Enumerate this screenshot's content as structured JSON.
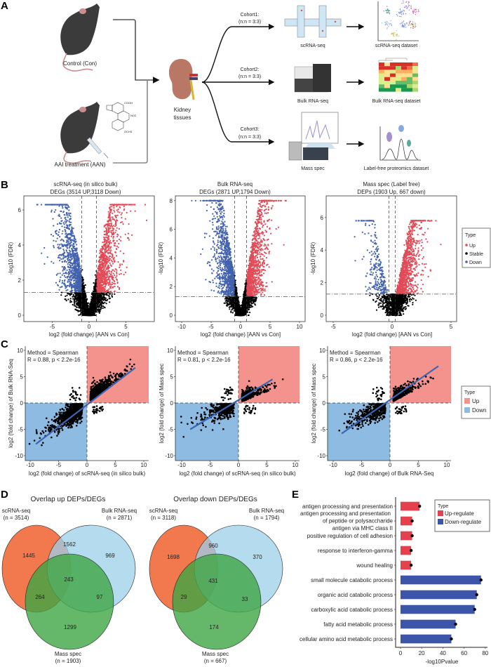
{
  "panel_labels": {
    "a": "A",
    "b": "B",
    "c": "C",
    "d": "D",
    "e": "E"
  },
  "panel_a": {
    "control_label": "Control (Con)",
    "aan_label": "AAI treatment (AAN)",
    "kidney_label_1": "Kidney",
    "kidney_label_2": "tissues",
    "cohorts": [
      {
        "name": "Cohort1:",
        "n": "(n:n = 3:3)",
        "method": "scRNA-seq",
        "dataset": "scRNA-seq dataset"
      },
      {
        "name": "Cohort2:",
        "n": "(n:n = 3:3)",
        "method": "Bulk RNA-seq",
        "dataset": "Bulk RNA-seq  dataset"
      },
      {
        "name": "Cohort3:",
        "n": "(n:n = 3:3)",
        "method": "Mass spec",
        "dataset": "Label-free proteomics dataset"
      }
    ],
    "chem_labels": [
      "COOH",
      "NO2",
      "OCH3"
    ]
  },
  "colors": {
    "up": "#e14b57",
    "down": "#4262ae",
    "stable": "#000000",
    "up_region": "#f4928d",
    "down_region": "#8dbbe2",
    "fit_line": "#3c66b4",
    "venn_scrna": "#ef6a3a",
    "venn_bulk": "#9ccfe9",
    "venn_mass": "#3ea644",
    "bar_up": "#e5404d",
    "bar_down": "#3d55a8"
  },
  "legend_b": {
    "title": "Type",
    "items": [
      "Up",
      "Stable",
      "Down"
    ]
  },
  "legend_c": {
    "title": "Type",
    "items": [
      "Up",
      "Down"
    ]
  },
  "chart_data": [
    {
      "type": "scatter",
      "title_1": "scRNA-seq (in silico bulk)",
      "title_2": "DEGs (3514 UP,3118 Down)",
      "xlabel": "log2 (fold change) [AAN vs Con]",
      "ylabel": "-log10 (FDR)",
      "xticks": [
        "-5",
        "0",
        "5"
      ],
      "yticks": [
        "0",
        "2",
        "4",
        "6"
      ],
      "xlim": [
        -9.3,
        8.8
      ],
      "ylim": [
        -0.4,
        6.8
      ],
      "fdr_threshold": 1.3,
      "fc_thresholds": [
        -1,
        1
      ],
      "up_count": 3514,
      "down_count": 3118
    },
    {
      "type": "scatter",
      "title_1": "Bulk RNA-seq",
      "title_2": "DEGs (2871 UP,1794 Down)",
      "xlabel": "log2 (fold change) [AAN vs Con]",
      "ylabel": "-log10 (FDR)",
      "xticks": [
        "-10",
        "-5",
        "0",
        "5",
        "10"
      ],
      "yticks": [
        "0",
        "2",
        "4",
        "6",
        "8"
      ],
      "xlim": [
        -11,
        11
      ],
      "ylim": [
        -0.4,
        8.4
      ],
      "fdr_threshold": 1.3,
      "fc_thresholds": [
        -1,
        1
      ],
      "up_count": 2871,
      "down_count": 1794
    },
    {
      "type": "scatter",
      "title_1": "Mass spec (Label free)",
      "title_2": "DEPs (1903 Up, 667 down)",
      "xlabel": "log2 (fold change) [AAN vs Con]",
      "ylabel": "-log10 (FDR)",
      "xticks": [
        "-5",
        "0",
        "5"
      ],
      "yticks": [
        "0",
        "2",
        "4",
        "6"
      ],
      "xlim": [
        -5.5,
        5.5
      ],
      "ylim": [
        -0.4,
        7.4
      ],
      "fdr_threshold": 1.3,
      "fc_thresholds": [
        -0.26,
        0.26
      ],
      "up_count": 1903,
      "down_count": 667
    },
    {
      "type": "scatter",
      "method": "Method = Spearman",
      "stat": "R = 0.88, p < 2.2e-16",
      "xlabel": "log2 (fold change) of scRNA-seq (in silico bulk)",
      "ylabel": "log2 (fold change) of Bulk RNA-Seq",
      "xticks": [
        "-10",
        "-5",
        "0",
        "5",
        "10"
      ],
      "yticks": [
        "-10",
        "-5",
        "0",
        "5",
        "10"
      ],
      "xlim": [
        -11,
        10.8
      ],
      "ylim": [
        -11,
        10.8
      ],
      "R": 0.88,
      "fit": [
        [
          -9,
          -7.8
        ],
        [
          8.5,
          6.7
        ]
      ]
    },
    {
      "type": "scatter",
      "method": "Method = Spearman",
      "stat": "R = 0.81, p < 2.2e-16",
      "xlabel": "log2 (fold change) of scRNA-seq (in silico bulk)",
      "ylabel": "log2 (fold change) of Mass spec",
      "xticks": [
        "-10",
        "-5",
        "0",
        "5",
        "10"
      ],
      "yticks": [
        "-10",
        "-5",
        "0",
        "5",
        "10"
      ],
      "xlim": [
        -11,
        10.8
      ],
      "ylim": [
        -11,
        10.8
      ],
      "R": 0.81,
      "fit": [
        [
          -8.5,
          -5
        ],
        [
          6,
          4.5
        ]
      ]
    },
    {
      "type": "scatter",
      "method": "Method = Spearman",
      "stat": "R = 0.86, p < 2.2e-16",
      "xlabel": "log2 (fold change) of Bulk RNA-Seq",
      "ylabel": "log2 (fold change) of Mass spec",
      "xticks": [
        "-10",
        "-5",
        "0",
        "5",
        "10"
      ],
      "yticks": [
        "-10",
        "-5",
        "0",
        "5",
        "10"
      ],
      "xlim": [
        -11,
        10.8
      ],
      "ylim": [
        -11,
        10.8
      ],
      "R": 0.86,
      "fit": [
        [
          -8.5,
          -5.8
        ],
        [
          8.5,
          7
        ]
      ]
    },
    {
      "type": "venn",
      "title": "Overlap up DEPs/DEGs",
      "sets": [
        {
          "name": "scRNA-seq",
          "n": "(n = 3514)"
        },
        {
          "name": "Bulk RNA-seq",
          "n": "(n = 2871)"
        },
        {
          "name": "Mass spec",
          "n": "(n = 1903)"
        }
      ],
      "regions": {
        "scrna_only": "1445",
        "scrna_bulk": "1562",
        "bulk_only": "969",
        "all": "243",
        "scrna_mass": "264",
        "bulk_mass": "97",
        "mass_only": "1299"
      }
    },
    {
      "type": "venn",
      "title": "Overlap down DEPs/DEGs",
      "sets": [
        {
          "name": "scRNA-seq",
          "n": "(n = 3118)"
        },
        {
          "name": "Bulk RNA-seq",
          "n": "(n = 1794)"
        },
        {
          "name": "Mass spec",
          "n": "(n = 667)"
        }
      ],
      "regions": {
        "scrna_only": "1698",
        "scrna_bulk": "960",
        "bulk_only": "370",
        "all": "431",
        "scrna_mass": "29",
        "bulk_mass": "33",
        "mass_only": "174"
      }
    },
    {
      "type": "bar",
      "orientation": "horizontal",
      "xlabel": "-log10Pvalue",
      "xlim": [
        0,
        80
      ],
      "xticks": [
        "0",
        "20",
        "40",
        "60",
        "80"
      ],
      "legend": {
        "title": "Type",
        "items": [
          "Up-regulate",
          "Down-regulate"
        ]
      },
      "categories": [
        "antigen processing and presentation",
        "antigen processing and presentation\nof peptide or polysaccharide\nantigen via MHC class II",
        "positive regulation of cell adhesion",
        "response to interferon-gamma",
        "wound healing",
        "small molecule catabolic process",
        "organic acid catabolic process",
        "carboxylic acid catabolic process",
        "fatty acid metabolic process",
        "cellular amino acid metabolic process"
      ],
      "values": [
        18,
        11,
        11,
        10,
        10,
        76,
        72,
        70,
        52,
        48
      ],
      "types": [
        "Up-regulate",
        "Up-regulate",
        "Up-regulate",
        "Up-regulate",
        "Up-regulate",
        "Down-regulate",
        "Down-regulate",
        "Down-regulate",
        "Down-regulate",
        "Down-regulate"
      ]
    }
  ]
}
